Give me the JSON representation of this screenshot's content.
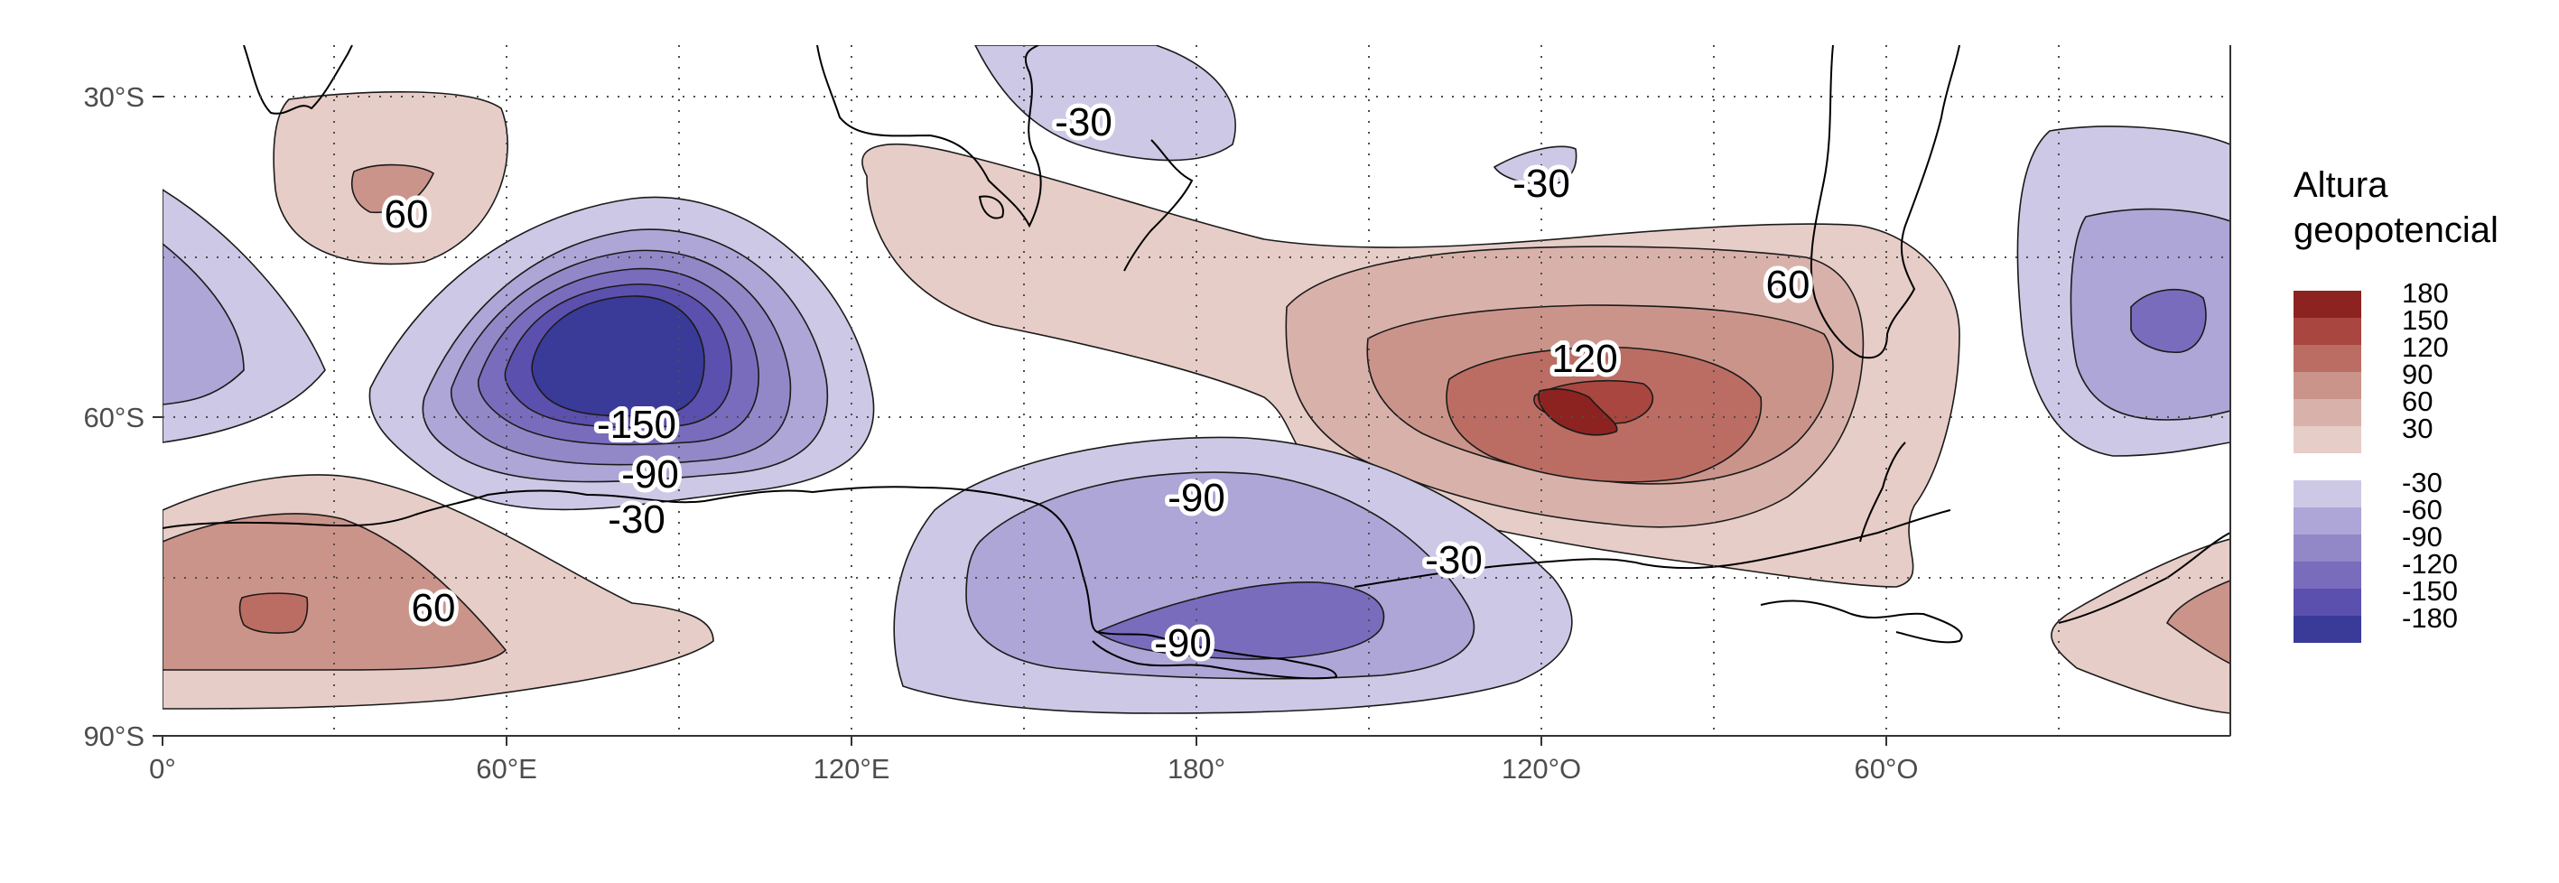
{
  "map": {
    "type": "contour-map",
    "projection": "equirectangular",
    "lon_range": [
      0,
      360
    ],
    "lat_range": [
      -90,
      -25
    ],
    "grid": true,
    "x_ticks": [
      {
        "value": 0,
        "label": "0°"
      },
      {
        "value": 60,
        "label": "60°E"
      },
      {
        "value": 120,
        "label": "120°E"
      },
      {
        "value": 180,
        "label": "180°"
      },
      {
        "value": 240,
        "label": "120°O"
      },
      {
        "value": 300,
        "label": "60°O"
      }
    ],
    "y_ticks": [
      {
        "value": -30,
        "label": "30°S"
      },
      {
        "value": -60,
        "label": "60°S"
      },
      {
        "value": -90,
        "label": "90°S"
      }
    ],
    "contour_labels": [
      {
        "text": "60",
        "lon": 42,
        "lat": -40
      },
      {
        "text": "-150",
        "lon": 82,
        "lat": -61
      },
      {
        "text": "-90",
        "lon": 85,
        "lat": -66
      },
      {
        "text": "-30",
        "lon": 83,
        "lat": -70
      },
      {
        "text": "60",
        "lon": 47,
        "lat": -82
      },
      {
        "text": "-30",
        "lon": 160,
        "lat": -33
      },
      {
        "text": "-30",
        "lon": 240,
        "lat": -38
      },
      {
        "text": "60",
        "lon": 283,
        "lat": -52
      },
      {
        "text": "120",
        "lon": 248,
        "lat": -56
      },
      {
        "text": "-90",
        "lon": 180,
        "lat": -67
      },
      {
        "text": "-90",
        "lon": 178,
        "lat": -83
      },
      {
        "text": "-30",
        "lon": 224,
        "lat": -76
      }
    ]
  },
  "legend": {
    "title_line1": "Altura",
    "title_line2": "geopotencial",
    "positive": [
      {
        "label": "180",
        "color": "#8c2320"
      },
      {
        "label": "150",
        "color": "#a8463f"
      },
      {
        "label": "120",
        "color": "#bc6d63"
      },
      {
        "label": "90",
        "color": "#cb948a"
      },
      {
        "label": "60",
        "color": "#d8b2aa"
      },
      {
        "label": "30",
        "color": "#e7cdc7"
      }
    ],
    "negative": [
      {
        "label": "-30",
        "color": "#cdc8e5"
      },
      {
        "label": "-60",
        "color": "#aea6d6"
      },
      {
        "label": "-90",
        "color": "#9288c8"
      },
      {
        "label": "-120",
        "color": "#7a6cbc"
      },
      {
        "label": "-150",
        "color": "#5b50ae"
      },
      {
        "label": "-180",
        "color": "#3a3a98"
      }
    ]
  }
}
